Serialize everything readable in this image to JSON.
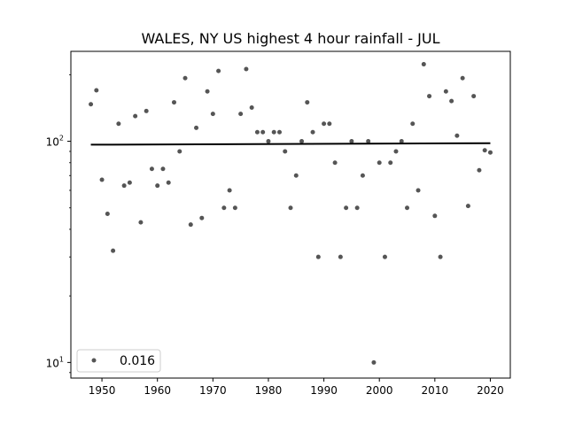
{
  "chart_data": {
    "type": "scatter",
    "title": "WALES, NY US highest 4 hour rainfall - JUL",
    "xlabel": "",
    "ylabel": "",
    "xlim": [
      1944.4,
      2023.6
    ],
    "ylim": [
      8.5,
      255
    ],
    "yscale": "log",
    "x_ticks": [
      1950,
      1960,
      1970,
      1980,
      1990,
      2000,
      2010,
      2020
    ],
    "y_ticks": [
      {
        "value": 10,
        "base": "10",
        "exp": "1"
      },
      {
        "value": 100,
        "base": "10",
        "exp": "2"
      }
    ],
    "legend": {
      "label": "0.016",
      "position": "lower-left"
    },
    "point_color": "#555555",
    "trend_color": "#000000",
    "trend": {
      "x": [
        1948,
        2020
      ],
      "y": [
        96.5,
        98.0
      ]
    },
    "points": {
      "x": [
        1948,
        1949,
        1950,
        1951,
        1952,
        1953,
        1954,
        1955,
        1956,
        1957,
        1958,
        1959,
        1960,
        1961,
        1962,
        1963,
        1964,
        1965,
        1966,
        1967,
        1968,
        1969,
        1970,
        1971,
        1972,
        1973,
        1974,
        1975,
        1976,
        1977,
        1978,
        1979,
        1980,
        1981,
        1982,
        1983,
        1984,
        1985,
        1986,
        1987,
        1988,
        1989,
        1990,
        1991,
        1992,
        1993,
        1994,
        1995,
        1996,
        1997,
        1998,
        1999,
        2000,
        2001,
        2002,
        2003,
        2004,
        2005,
        2006,
        2007,
        2008,
        2009,
        2010,
        2011,
        2012,
        2013,
        2014,
        2015,
        2016,
        2017,
        2018,
        2019,
        2020
      ],
      "y": [
        147,
        170,
        67,
        47,
        32,
        120,
        63,
        65,
        130,
        43,
        137,
        75,
        63,
        75,
        65,
        150,
        90,
        193,
        42,
        115,
        45,
        168,
        133,
        208,
        50,
        60,
        50,
        133,
        212,
        142,
        110,
        110,
        100,
        110,
        110,
        90,
        50,
        70,
        100,
        150,
        110,
        30,
        120,
        120,
        80,
        30,
        50,
        100,
        50,
        70,
        100,
        10,
        80,
        30,
        80,
        90,
        100,
        50,
        120,
        60,
        223,
        160,
        46,
        30,
        168,
        152,
        106,
        193,
        51,
        160,
        74,
        91,
        89
      ]
    }
  }
}
